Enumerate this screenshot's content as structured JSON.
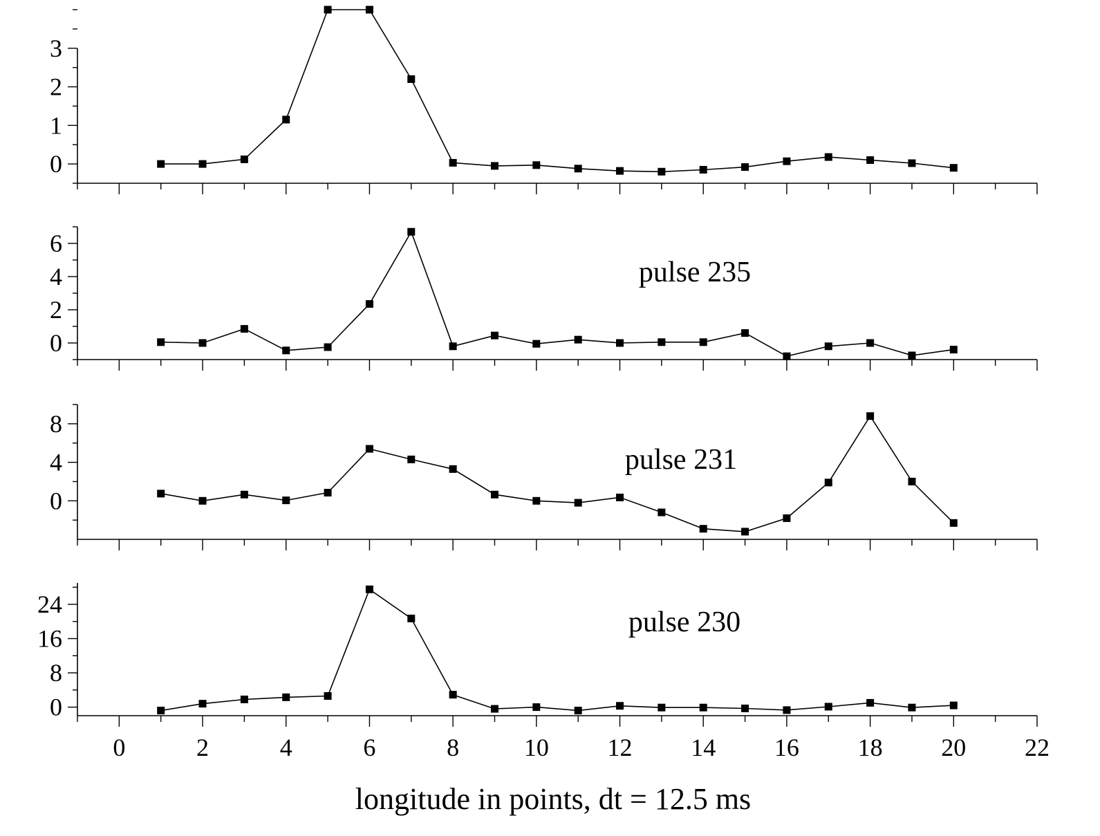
{
  "chart_data": [
    {
      "type": "line",
      "title": "",
      "annotation": "",
      "x": [
        1,
        2,
        3,
        4,
        5,
        6,
        7,
        8,
        9,
        10,
        11,
        12,
        13,
        14,
        15,
        16,
        17,
        18,
        19,
        20
      ],
      "values": [
        0,
        0,
        0.12,
        1.15,
        4.0,
        4.0,
        2.2,
        0.03,
        -0.05,
        -0.03,
        -0.12,
        -0.18,
        -0.2,
        -0.15,
        -0.08,
        0.07,
        0.18,
        0.1,
        0.02,
        -0.1
      ],
      "ylim": [
        -0.5,
        4.0
      ],
      "yticks": [
        0,
        1,
        2,
        3
      ],
      "ytick_labels": [
        "0",
        "1",
        "2",
        "3"
      ],
      "marker": "square",
      "xlabel": "",
      "ylabel": ""
    },
    {
      "type": "line",
      "title": "",
      "annotation": "pulse 235",
      "x": [
        1,
        2,
        3,
        4,
        5,
        6,
        7,
        8,
        9,
        10,
        11,
        12,
        13,
        14,
        15,
        16,
        17,
        18,
        19,
        20
      ],
      "values": [
        0.05,
        0,
        0.85,
        -0.45,
        -0.25,
        2.35,
        6.7,
        -0.2,
        0.45,
        -0.05,
        0.2,
        0,
        0.05,
        0.05,
        0.6,
        -0.8,
        -0.2,
        0,
        -0.75,
        -0.4
      ],
      "ylim": [
        -1.0,
        7.0
      ],
      "yticks": [
        0,
        2,
        4,
        6
      ],
      "ytick_labels": [
        "0",
        "2",
        "4",
        "6"
      ],
      "marker": "square",
      "xlabel": "",
      "ylabel": ""
    },
    {
      "type": "line",
      "title": "",
      "annotation": "pulse 231",
      "x": [
        1,
        2,
        3,
        4,
        5,
        6,
        7,
        8,
        9,
        10,
        11,
        12,
        13,
        14,
        15,
        16,
        17,
        18,
        19,
        20
      ],
      "values": [
        0.75,
        0,
        0.65,
        0.05,
        0.85,
        5.4,
        4.3,
        3.3,
        0.65,
        0,
        -0.2,
        0.35,
        -1.2,
        -2.9,
        -3.2,
        -1.8,
        1.9,
        8.8,
        2.0,
        -2.3
      ],
      "ylim": [
        -4.0,
        10.0
      ],
      "yticks": [
        0,
        4,
        8
      ],
      "ytick_labels": [
        "0",
        "4",
        "8"
      ],
      "marker": "square",
      "xlabel": "",
      "ylabel": ""
    },
    {
      "type": "line",
      "title": "",
      "annotation": "pulse 230",
      "x": [
        1,
        2,
        3,
        4,
        5,
        6,
        7,
        8,
        9,
        10,
        11,
        12,
        13,
        14,
        15,
        16,
        17,
        18,
        19,
        20
      ],
      "values": [
        -0.8,
        0.8,
        1.8,
        2.3,
        2.6,
        27.5,
        20.7,
        2.9,
        -0.4,
        0,
        -0.8,
        0.3,
        -0.1,
        -0.1,
        -0.3,
        -0.7,
        0.1,
        1.0,
        -0.1,
        0.4
      ],
      "ylim": [
        -2.0,
        29.0
      ],
      "yticks": [
        0,
        8,
        16,
        24
      ],
      "ytick_labels": [
        "0",
        "8",
        "16",
        "24"
      ],
      "marker": "square",
      "xlabel": "longitude  in points, dt = 12.5  ms",
      "ylabel": "",
      "xlim": [
        -1,
        22
      ],
      "xticks": [
        0,
        2,
        4,
        6,
        8,
        10,
        12,
        14,
        16,
        18,
        20,
        22
      ],
      "xtick_labels": [
        "0",
        "2",
        "4",
        "6",
        "8",
        "10",
        "12",
        "14",
        "16",
        "18",
        "20",
        "22"
      ]
    }
  ]
}
